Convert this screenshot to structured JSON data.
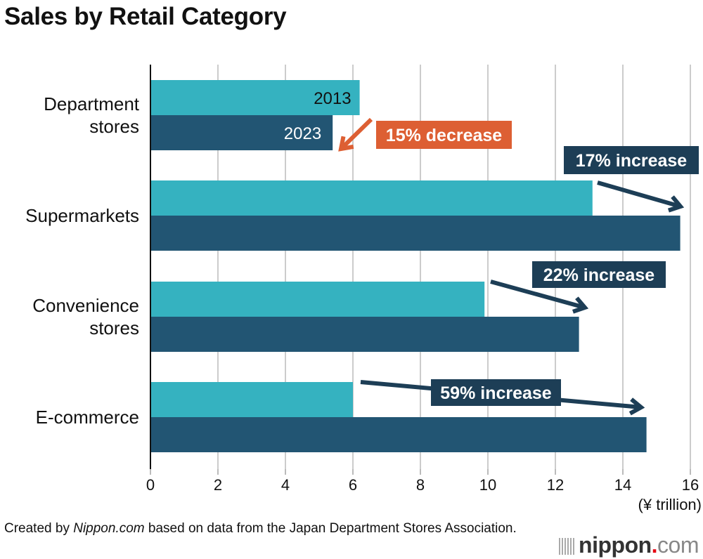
{
  "title": "Sales by Retail Category",
  "source": {
    "prefix": "Created by ",
    "italic": "Nippon.com",
    "suffix": " based on data from the Japan Department Stores Association."
  },
  "logo": {
    "brand": "nippon",
    "dot": ".",
    "tld": "com"
  },
  "colors": {
    "y2013": "#35b2c0",
    "y2023": "#225573",
    "decrease": "#dd5f33",
    "increase": "#1d3e56",
    "grid": "#cccccc"
  },
  "chart_data": {
    "type": "bar",
    "orientation": "horizontal",
    "title": "Sales by Retail Category",
    "xlabel": "(¥ trillion)",
    "ylabel": "",
    "xlim": [
      0,
      16
    ],
    "xticks": [
      0,
      2,
      4,
      6,
      8,
      10,
      12,
      14,
      16
    ],
    "grid": true,
    "categories": [
      "Department stores",
      "Supermarkets",
      "Convenience stores",
      "E-commerce"
    ],
    "category_lines": [
      [
        "Department",
        "stores"
      ],
      [
        "Supermarkets"
      ],
      [
        "Convenience",
        "stores"
      ],
      [
        "E-commerce"
      ]
    ],
    "series": [
      {
        "name": "2013",
        "values": [
          6.2,
          13.1,
          9.9,
          6.0
        ]
      },
      {
        "name": "2023",
        "values": [
          5.4,
          15.7,
          12.7,
          14.7
        ]
      }
    ],
    "annotations": [
      {
        "category": "Department stores",
        "text": "15% decrease",
        "type": "decrease"
      },
      {
        "category": "Supermarkets",
        "text": "17% increase",
        "type": "increase"
      },
      {
        "category": "Convenience stores",
        "text": "22% increase",
        "type": "increase"
      },
      {
        "category": "E-commerce",
        "text": "59% increase",
        "type": "increase"
      }
    ]
  }
}
